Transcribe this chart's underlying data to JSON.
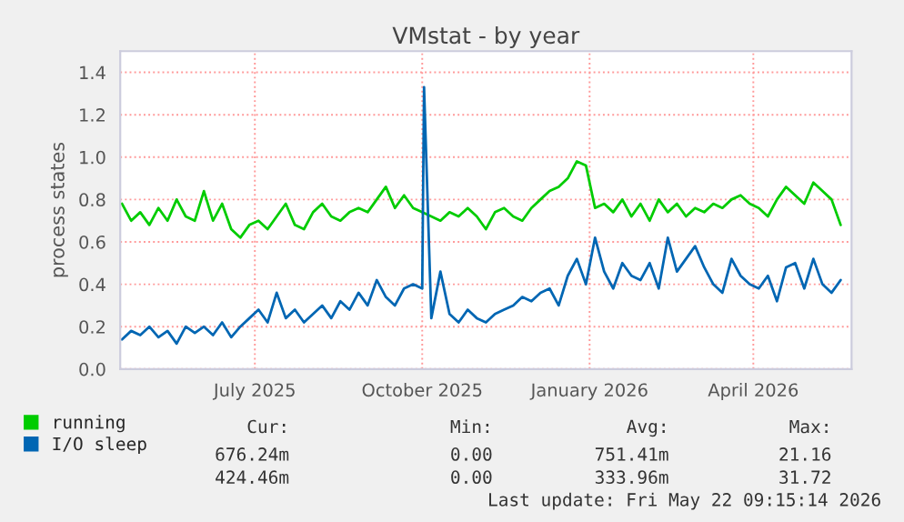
{
  "chart_data": {
    "type": "line",
    "title": "VMstat - by year",
    "ylabel": "process states",
    "x": [
      "2025-04-19",
      "2025-04-24",
      "2025-04-29",
      "2025-05-04",
      "2025-05-09",
      "2025-05-14",
      "2025-05-19",
      "2025-05-24",
      "2025-05-29",
      "2025-06-03",
      "2025-06-08",
      "2025-06-13",
      "2025-06-18",
      "2025-06-23",
      "2025-06-28",
      "2025-07-03",
      "2025-07-08",
      "2025-07-13",
      "2025-07-18",
      "2025-07-23",
      "2025-07-28",
      "2025-08-02",
      "2025-08-07",
      "2025-08-12",
      "2025-08-17",
      "2025-08-22",
      "2025-08-27",
      "2025-09-01",
      "2025-09-06",
      "2025-09-11",
      "2025-09-16",
      "2025-09-21",
      "2025-09-26",
      "2025-10-01",
      "2025-10-06",
      "2025-10-11",
      "2025-10-16",
      "2025-10-21",
      "2025-10-26",
      "2025-10-31",
      "2025-11-05",
      "2025-11-10",
      "2025-11-15",
      "2025-11-20",
      "2025-11-25",
      "2025-11-30",
      "2025-12-05",
      "2025-12-10",
      "2025-12-15",
      "2025-12-20",
      "2025-12-25",
      "2025-12-30",
      "2026-01-04",
      "2026-01-09",
      "2026-01-14",
      "2026-01-19",
      "2026-01-24",
      "2026-01-29",
      "2026-02-03",
      "2026-02-08",
      "2026-02-13",
      "2026-02-18",
      "2026-02-23",
      "2026-02-28",
      "2026-03-05",
      "2026-03-10",
      "2026-03-15",
      "2026-03-20",
      "2026-03-25",
      "2026-03-30",
      "2026-04-04",
      "2026-04-09",
      "2026-04-14",
      "2026-04-19",
      "2026-04-24",
      "2026-04-29",
      "2026-05-04",
      "2026-05-09",
      "2026-05-14",
      "2026-05-19"
    ],
    "series": [
      {
        "name": "running",
        "color": "#00cc00",
        "values": [
          0.78,
          0.7,
          0.74,
          0.68,
          0.76,
          0.7,
          0.8,
          0.72,
          0.7,
          0.84,
          0.7,
          0.78,
          0.66,
          0.62,
          0.68,
          0.7,
          0.66,
          0.72,
          0.78,
          0.68,
          0.66,
          0.74,
          0.78,
          0.72,
          0.7,
          0.74,
          0.76,
          0.74,
          0.8,
          0.86,
          0.76,
          0.82,
          0.76,
          0.74,
          0.72,
          0.7,
          0.74,
          0.72,
          0.76,
          0.72,
          0.66,
          0.74,
          0.76,
          0.72,
          0.7,
          0.76,
          0.8,
          0.84,
          0.86,
          0.9,
          0.98,
          0.96,
          0.76,
          0.78,
          0.74,
          0.8,
          0.72,
          0.78,
          0.7,
          0.8,
          0.74,
          0.78,
          0.72,
          0.76,
          0.74,
          0.78,
          0.76,
          0.8,
          0.82,
          0.78,
          0.76,
          0.72,
          0.8,
          0.86,
          0.82,
          0.78,
          0.88,
          0.84,
          0.8,
          0.68
        ]
      },
      {
        "name": "I/O sleep",
        "color": "#0066b3",
        "x": [
          "2025-04-19",
          "2025-04-24",
          "2025-04-29",
          "2025-05-04",
          "2025-05-09",
          "2025-05-14",
          "2025-05-19",
          "2025-05-24",
          "2025-05-29",
          "2025-06-03",
          "2025-06-08",
          "2025-06-13",
          "2025-06-18",
          "2025-06-23",
          "2025-06-28",
          "2025-07-03",
          "2025-07-08",
          "2025-07-13",
          "2025-07-18",
          "2025-07-23",
          "2025-07-28",
          "2025-08-02",
          "2025-08-07",
          "2025-08-12",
          "2025-08-17",
          "2025-08-22",
          "2025-08-27",
          "2025-09-01",
          "2025-09-06",
          "2025-09-11",
          "2025-09-16",
          "2025-09-21",
          "2025-09-26",
          "2025-10-01",
          "2025-10-02",
          "2025-10-06",
          "2025-10-11",
          "2025-10-16",
          "2025-10-21",
          "2025-10-26",
          "2025-10-31",
          "2025-11-05",
          "2025-11-10",
          "2025-11-15",
          "2025-11-20",
          "2025-11-25",
          "2025-11-30",
          "2025-12-05",
          "2025-12-10",
          "2025-12-15",
          "2025-12-20",
          "2025-12-25",
          "2025-12-30",
          "2026-01-04",
          "2026-01-09",
          "2026-01-14",
          "2026-01-19",
          "2026-01-24",
          "2026-01-29",
          "2026-02-03",
          "2026-02-08",
          "2026-02-13",
          "2026-02-18",
          "2026-02-23",
          "2026-02-28",
          "2026-03-05",
          "2026-03-10",
          "2026-03-15",
          "2026-03-20",
          "2026-03-25",
          "2026-03-30",
          "2026-04-04",
          "2026-04-09",
          "2026-04-14",
          "2026-04-19",
          "2026-04-24",
          "2026-04-29",
          "2026-05-04",
          "2026-05-09",
          "2026-05-14",
          "2026-05-19"
        ],
        "values": [
          0.14,
          0.18,
          0.16,
          0.2,
          0.15,
          0.18,
          0.12,
          0.2,
          0.17,
          0.2,
          0.16,
          0.22,
          0.15,
          0.2,
          0.24,
          0.28,
          0.22,
          0.36,
          0.24,
          0.28,
          0.22,
          0.26,
          0.3,
          0.24,
          0.32,
          0.28,
          0.36,
          0.3,
          0.42,
          0.34,
          0.3,
          0.38,
          0.4,
          0.38,
          1.33,
          0.24,
          0.46,
          0.26,
          0.22,
          0.28,
          0.24,
          0.22,
          0.26,
          0.28,
          0.3,
          0.34,
          0.32,
          0.36,
          0.38,
          0.3,
          0.44,
          0.52,
          0.4,
          0.62,
          0.46,
          0.38,
          0.5,
          0.44,
          0.42,
          0.5,
          0.38,
          0.62,
          0.46,
          0.52,
          0.58,
          0.48,
          0.4,
          0.36,
          0.52,
          0.44,
          0.4,
          0.38,
          0.44,
          0.32,
          0.48,
          0.5,
          0.38,
          0.52,
          0.4,
          0.36,
          0.42
        ]
      }
    ],
    "xlim": [
      "2025-04-18",
      "2026-05-25"
    ],
    "xticks": [
      {
        "value": "2025-07-01",
        "label": "July 2025"
      },
      {
        "value": "2025-10-01",
        "label": "October 2025"
      },
      {
        "value": "2026-01-01",
        "label": "January 2026"
      },
      {
        "value": "2026-04-01",
        "label": "April 2026"
      }
    ],
    "ylim": [
      0,
      1.5
    ],
    "yticks": [
      {
        "value": 0,
        "label": "0.0"
      },
      {
        "value": 0.2,
        "label": "0.2"
      },
      {
        "value": 0.4,
        "label": "0.4"
      },
      {
        "value": 0.6,
        "label": "0.6"
      },
      {
        "value": 0.8,
        "label": "0.8"
      },
      {
        "value": 1.0,
        "label": "1.0"
      },
      {
        "value": 1.2,
        "label": "1.2"
      },
      {
        "value": 1.4,
        "label": "1.4"
      }
    ],
    "grid": true,
    "legend": "bottom",
    "marker": "none",
    "line_style": "solid",
    "annotations": [
      "Cur:",
      "Min:",
      "Avg:",
      "Max:",
      "676.24m",
      "0.00",
      "751.41m",
      "21.16",
      "424.46m",
      "0.00",
      "333.96m",
      "31.72",
      "Last update: Fri May 22 09:15:14 2026"
    ]
  }
}
